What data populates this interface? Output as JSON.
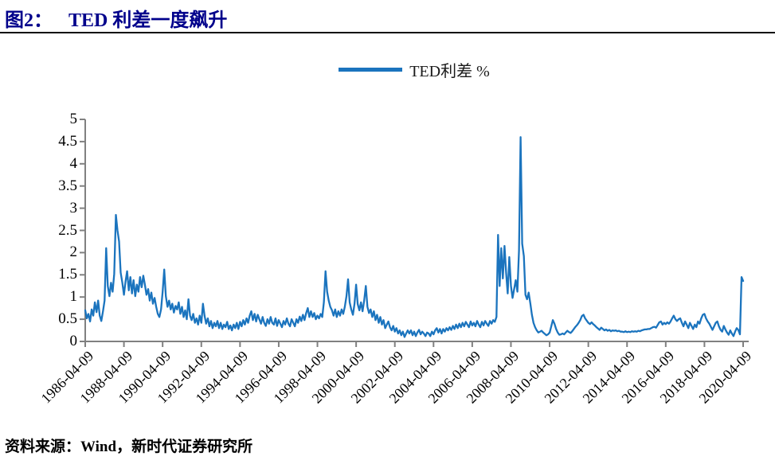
{
  "header": {
    "figure_label": "图2：",
    "title": "TED 利差一度飙升"
  },
  "legend": {
    "label": "TED利差 %",
    "line_color": "#1B74BE"
  },
  "footer": {
    "source": "资料来源：Wind，新时代证券研究所"
  },
  "colors": {
    "title_navy": "#00008B",
    "axis_gray": "#808080",
    "series_blue": "#1B74BE"
  },
  "chart_data": {
    "type": "line",
    "title": "TED利差 %",
    "xlabel": "",
    "ylabel": "",
    "ylim": [
      0,
      5
    ],
    "yticks": [
      0,
      0.5,
      1,
      1.5,
      2,
      2.5,
      3,
      3.5,
      4,
      4.5,
      5
    ],
    "ytick_labels": [
      "0",
      "0.5",
      "1",
      "1.5",
      "2",
      "2.5",
      "3",
      "3.5",
      "4",
      "4.5",
      "5"
    ],
    "xtick_labels": [
      "1986-04-09",
      "1988-04-09",
      "1990-04-09",
      "1992-04-09",
      "1994-04-09",
      "1996-04-09",
      "1998-04-09",
      "2000-04-09",
      "2002-04-09",
      "2004-04-09",
      "2006-04-09",
      "2008-04-09",
      "2010-04-09",
      "2012-04-09",
      "2014-04-09",
      "2016-04-09",
      "2018-04-09",
      "2020-04-09"
    ],
    "grid": false,
    "legend_position": "top-center",
    "frequency": "monthly",
    "x_start": "1986-04",
    "x_end": "2020-04",
    "series": [
      {
        "name": "TED利差 %",
        "color": "#1B74BE",
        "values": [
          0.7,
          0.52,
          0.62,
          0.45,
          0.72,
          0.58,
          0.88,
          0.66,
          0.92,
          0.58,
          0.46,
          0.68,
          0.92,
          2.1,
          1.25,
          1.02,
          1.32,
          1.12,
          1.52,
          2.85,
          2.5,
          2.25,
          1.55,
          1.32,
          1.05,
          1.35,
          1.58,
          1.15,
          1.45,
          1.08,
          1.38,
          1.02,
          1.28,
          1.12,
          1.45,
          1.22,
          1.48,
          1.28,
          1.05,
          1.18,
          0.92,
          1.1,
          0.85,
          0.98,
          0.78,
          0.62,
          0.55,
          0.72,
          1.12,
          1.62,
          1.02,
          0.78,
          0.92,
          0.72,
          0.85,
          0.65,
          0.8,
          0.72,
          0.88,
          0.62,
          0.78,
          0.55,
          0.7,
          0.5,
          0.95,
          0.58,
          0.48,
          0.62,
          0.42,
          0.52,
          0.38,
          0.58,
          0.42,
          0.85,
          0.58,
          0.4,
          0.52,
          0.34,
          0.46,
          0.3,
          0.42,
          0.34,
          0.46,
          0.3,
          0.42,
          0.28,
          0.38,
          0.32,
          0.44,
          0.28,
          0.36,
          0.25,
          0.38,
          0.3,
          0.42,
          0.28,
          0.44,
          0.34,
          0.48,
          0.38,
          0.52,
          0.42,
          0.58,
          0.68,
          0.48,
          0.62,
          0.45,
          0.6,
          0.5,
          0.4,
          0.55,
          0.42,
          0.35,
          0.5,
          0.4,
          0.55,
          0.42,
          0.38,
          0.52,
          0.35,
          0.48,
          0.4,
          0.32,
          0.46,
          0.38,
          0.52,
          0.4,
          0.34,
          0.5,
          0.42,
          0.34,
          0.5,
          0.42,
          0.56,
          0.46,
          0.6,
          0.48,
          0.64,
          0.75,
          0.55,
          0.68,
          0.55,
          0.64,
          0.5,
          0.58,
          0.52,
          0.62,
          0.55,
          0.88,
          1.58,
          1.12,
          0.92,
          0.78,
          0.7,
          0.58,
          0.72,
          0.55,
          0.68,
          0.58,
          0.72,
          0.62,
          0.78,
          1.02,
          1.4,
          0.88,
          0.72,
          0.6,
          0.85,
          1.28,
          0.84,
          0.7,
          0.88,
          0.68,
          0.92,
          1.25,
          0.78,
          0.64,
          0.72,
          0.55,
          0.68,
          0.48,
          0.6,
          0.42,
          0.55,
          0.38,
          0.48,
          0.3,
          0.38,
          0.45,
          0.32,
          0.25,
          0.35,
          0.22,
          0.3,
          0.18,
          0.25,
          0.14,
          0.22,
          0.1,
          0.18,
          0.25,
          0.18,
          0.25,
          0.14,
          0.22,
          0.12,
          0.2,
          0.26,
          0.16,
          0.22,
          0.18,
          0.12,
          0.2,
          0.18,
          0.12,
          0.22,
          0.16,
          0.25,
          0.3,
          0.2,
          0.28,
          0.18,
          0.28,
          0.22,
          0.3,
          0.25,
          0.32,
          0.26,
          0.35,
          0.28,
          0.38,
          0.3,
          0.4,
          0.32,
          0.42,
          0.34,
          0.44,
          0.38,
          0.32,
          0.45,
          0.36,
          0.42,
          0.34,
          0.46,
          0.38,
          0.32,
          0.44,
          0.36,
          0.46,
          0.4,
          0.35,
          0.46,
          0.4,
          0.48,
          0.44,
          0.55,
          2.4,
          1.25,
          2.1,
          1.42,
          2.15,
          1.55,
          1.08,
          1.9,
          1.25,
          0.98,
          1.18,
          1.38,
          1.12,
          2.05,
          4.6,
          2.2,
          1.92,
          1.05,
          0.95,
          1.1,
          0.86,
          0.6,
          0.42,
          0.32,
          0.25,
          0.2,
          0.22,
          0.24,
          0.2,
          0.17,
          0.14,
          0.16,
          0.2,
          0.34,
          0.48,
          0.4,
          0.28,
          0.2,
          0.15,
          0.16,
          0.18,
          0.16,
          0.2,
          0.24,
          0.21,
          0.19,
          0.23,
          0.28,
          0.33,
          0.37,
          0.42,
          0.48,
          0.57,
          0.6,
          0.52,
          0.47,
          0.42,
          0.39,
          0.43,
          0.39,
          0.36,
          0.32,
          0.29,
          0.26,
          0.31,
          0.28,
          0.25,
          0.27,
          0.24,
          0.26,
          0.23,
          0.25,
          0.24,
          0.25,
          0.23,
          0.24,
          0.22,
          0.22,
          0.21,
          0.23,
          0.21,
          0.22,
          0.21,
          0.23,
          0.22,
          0.23,
          0.22,
          0.24,
          0.23,
          0.25,
          0.26,
          0.27,
          0.27,
          0.28,
          0.28,
          0.3,
          0.32,
          0.33,
          0.31,
          0.37,
          0.43,
          0.45,
          0.38,
          0.42,
          0.39,
          0.43,
          0.4,
          0.45,
          0.52,
          0.58,
          0.5,
          0.46,
          0.5,
          0.52,
          0.42,
          0.34,
          0.45,
          0.38,
          0.3,
          0.42,
          0.35,
          0.28,
          0.38,
          0.32,
          0.45,
          0.4,
          0.52,
          0.6,
          0.62,
          0.52,
          0.45,
          0.4,
          0.33,
          0.26,
          0.34,
          0.42,
          0.45,
          0.34,
          0.26,
          0.22,
          0.35,
          0.27,
          0.2,
          0.15,
          0.25,
          0.18,
          0.12,
          0.22,
          0.3,
          0.26,
          0.16,
          1.45,
          1.36
        ]
      }
    ]
  }
}
